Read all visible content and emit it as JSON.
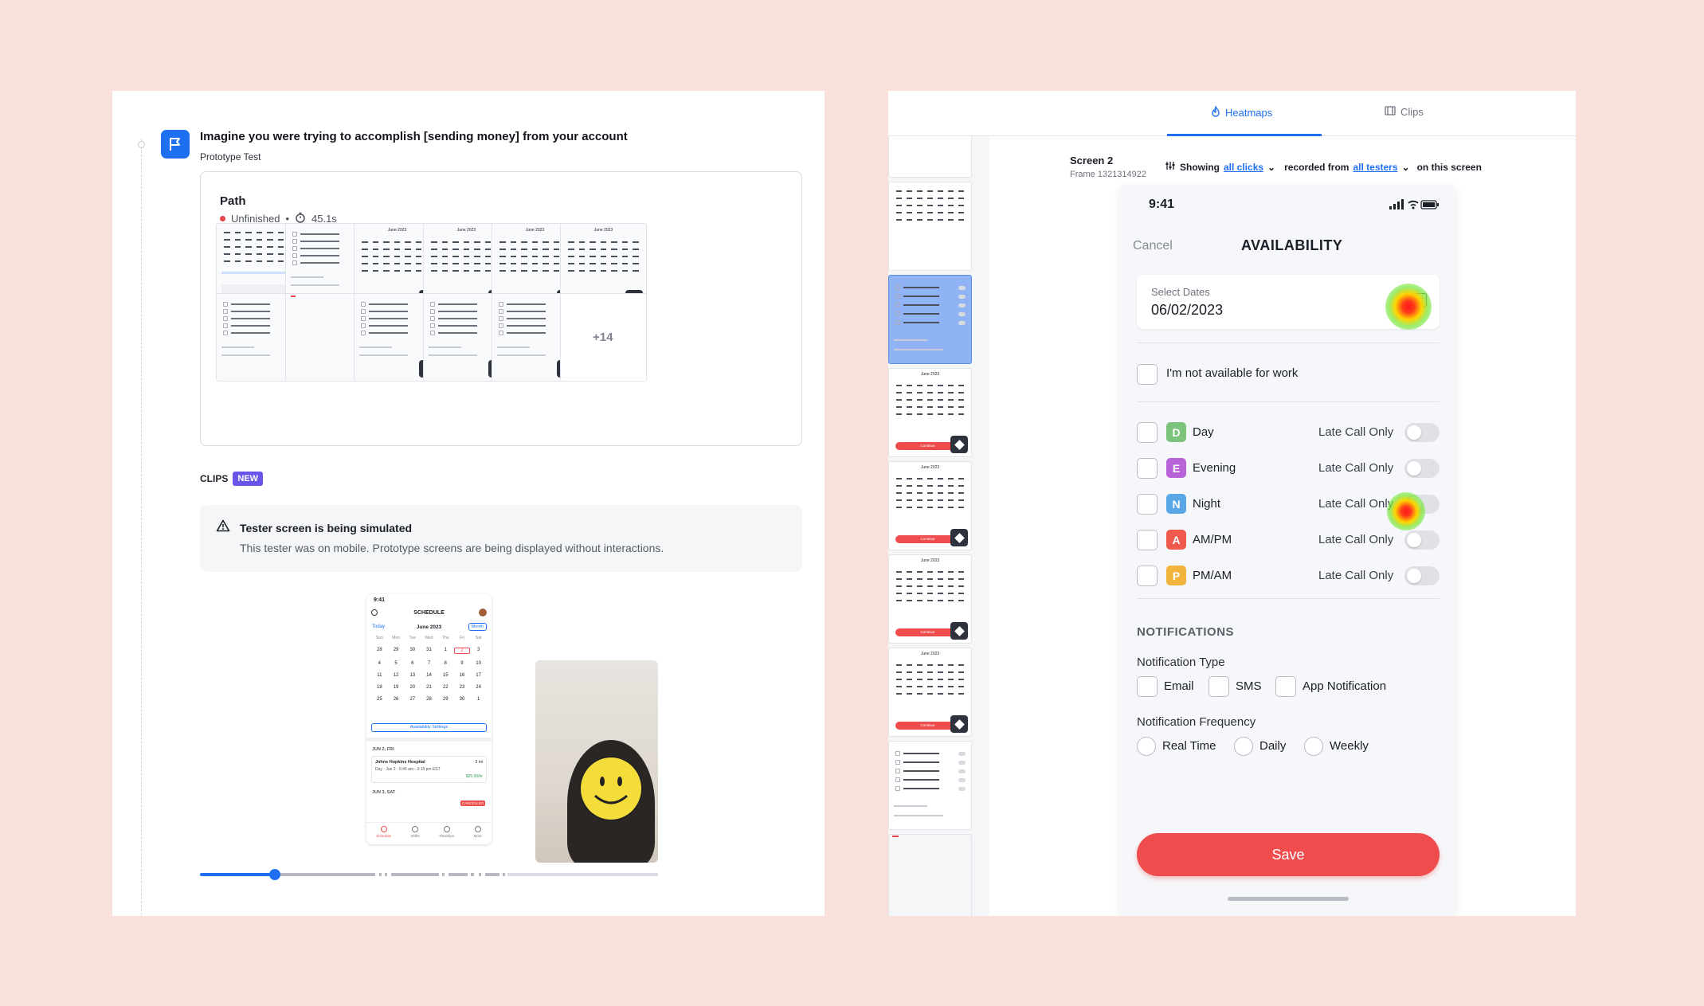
{
  "test": {
    "question": "Imagine you were trying to accomplish [sending money] from your account",
    "type": "Prototype Test"
  },
  "path": {
    "label": "Path",
    "status": "Unfinished",
    "duration": "45.1s",
    "more_count": "+14",
    "thumb_month": "June 2023",
    "thumb_continue": "Continue"
  },
  "clips": {
    "label": "CLIPS",
    "badge": "NEW",
    "warning_title": "Tester screen is being simulated",
    "warning_desc": "This tester was on mobile. Prototype screens are being displayed without interactions.",
    "video_progress": 0.16
  },
  "mini_phone": {
    "time": "9:41",
    "title": "SCHEDULE",
    "today": "Today",
    "month": "June 2023",
    "view": "Month",
    "weekdays": [
      "Sun",
      "Mon",
      "Tue",
      "Wed",
      "Thu",
      "Fri",
      "Sat"
    ],
    "days": [
      "28",
      "29",
      "30",
      "31",
      "1",
      "2",
      "3",
      "4",
      "5",
      "6",
      "7",
      "8",
      "9",
      "10",
      "11",
      "12",
      "13",
      "14",
      "15",
      "16",
      "17",
      "18",
      "19",
      "20",
      "21",
      "22",
      "23",
      "24",
      "25",
      "26",
      "27",
      "28",
      "29",
      "30",
      "1"
    ],
    "availability_button": "Availability Settings",
    "day1": "JUN 2, FRI",
    "shift_hospital": "Johns Hopkins Hospital",
    "shift_time": "Day · Jun 2 · 6:45 am - 3:15 pm EST",
    "shift_dist": "3 mi",
    "shift_pay": "$25.00/hr",
    "day2": "JUN 3, SAT",
    "cancelled": "CANCELLED",
    "nav": [
      "Schedule",
      "Shifts",
      "Timeslips",
      "More"
    ]
  },
  "tabs": {
    "heatmaps": "Heatmaps",
    "clips": "Clips"
  },
  "screen": {
    "title": "Screen 2",
    "frame": "Frame 1321314922",
    "showing": "Showing",
    "all_clicks": "all clicks",
    "recorded_from": "recorded from",
    "all_testers": "all testers",
    "on_this_screen": "on this screen"
  },
  "availability": {
    "time": "9:41",
    "cancel": "Cancel",
    "title": "AVAILABILITY",
    "select_dates_label": "Select Dates",
    "select_dates_value": "06/02/2023",
    "not_available": "I'm not available for work",
    "late_call": "Late Call Only",
    "shifts": [
      {
        "letter": "D",
        "name": "Day",
        "color": "#7cc47b"
      },
      {
        "letter": "E",
        "name": "Evening",
        "color": "#b864d8"
      },
      {
        "letter": "N",
        "name": "Night",
        "color": "#5aa7e8"
      },
      {
        "letter": "A",
        "name": "AM/PM",
        "color": "#ef5a4d"
      },
      {
        "letter": "P",
        "name": "PM/AM",
        "color": "#f2b43c"
      }
    ],
    "notifications_header": "NOTIFICATIONS",
    "notification_type": "Notification Type",
    "types": [
      "Email",
      "SMS",
      "App Notification"
    ],
    "notification_frequency": "Notification Frequency",
    "frequencies": [
      "Real Time",
      "Daily",
      "Weekly"
    ],
    "save": "Save"
  },
  "colors": {
    "accent": "#1f6ff2",
    "save": "#ef4d4d",
    "background": "#f8e0db",
    "badge": "#6955e8"
  }
}
